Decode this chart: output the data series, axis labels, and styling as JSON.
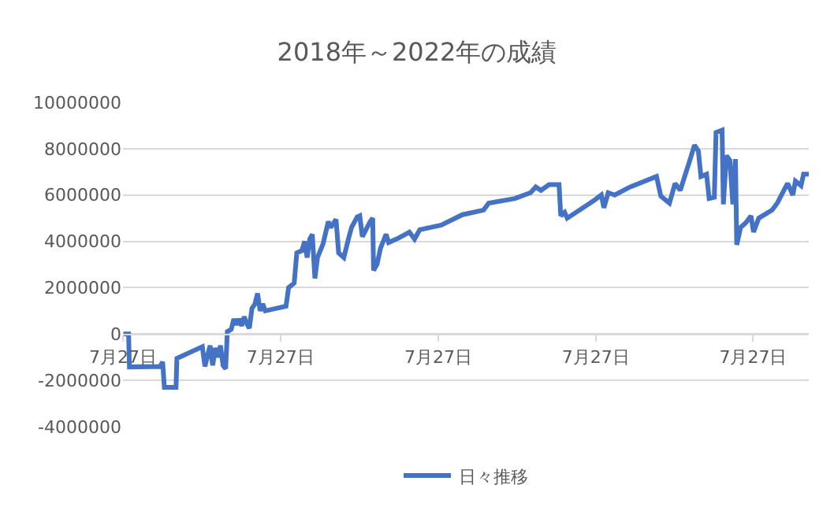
{
  "chart_data": {
    "type": "line",
    "title": "2018年～2022年の成績",
    "x": [
      "2018-07-28",
      "2018-08-09",
      "2018-08-11",
      "2018-10-21",
      "2018-10-27",
      "2018-10-31",
      "2018-11-27",
      "2018-11-29",
      "2019-01-27",
      "2019-02-02",
      "2019-02-14",
      "2019-02-20",
      "2019-02-26",
      "2019-03-04",
      "2019-03-10",
      "2019-03-16",
      "2019-03-22",
      "2019-03-26",
      "2019-04-04",
      "2019-04-10",
      "2019-04-16",
      "2019-04-22",
      "2019-04-28",
      "2019-05-04",
      "2019-05-10",
      "2019-05-16",
      "2019-05-22",
      "2019-05-29",
      "2019-06-04",
      "2019-06-10",
      "2019-06-16",
      "2019-06-22",
      "2019-08-09",
      "2019-08-15",
      "2019-08-28",
      "2019-09-03",
      "2019-09-15",
      "2019-09-21",
      "2019-09-27",
      "2019-10-03",
      "2019-10-09",
      "2019-10-15",
      "2019-10-21",
      "2019-11-03",
      "2019-11-15",
      "2019-11-21",
      "2019-12-03",
      "2019-12-09",
      "2019-12-21",
      "2020-01-02",
      "2020-01-08",
      "2020-01-21",
      "2020-01-27",
      "2020-02-02",
      "2020-02-20",
      "2020-02-26",
      "2020-02-28",
      "2020-03-07",
      "2020-03-15",
      "2020-03-28",
      "2020-04-03",
      "2020-04-27",
      "2020-05-21",
      "2020-06-02",
      "2020-06-14",
      "2020-08-03",
      "2020-09-21",
      "2020-11-09",
      "2020-11-21",
      "2021-01-21",
      "2021-02-26",
      "2021-03-10",
      "2021-03-22",
      "2021-04-10",
      "2021-05-03",
      "2021-05-07",
      "2021-05-16",
      "2021-05-22",
      "2021-07-22",
      "2021-08-09",
      "2021-08-15",
      "2021-08-25",
      "2021-09-09",
      "2021-10-15",
      "2021-12-15",
      "2021-12-25",
      "2022-01-14",
      "2022-01-27",
      "2022-02-08",
      "2022-02-20",
      "2022-03-04",
      "2022-03-13",
      "2022-03-22",
      "2022-03-28",
      "2022-04-10",
      "2022-04-16",
      "2022-04-28",
      "2022-05-02",
      "2022-05-16",
      "2022-05-19",
      "2022-05-26",
      "2022-06-03",
      "2022-06-10",
      "2022-06-16",
      "2022-06-19",
      "2022-06-28",
      "2022-07-10",
      "2022-07-22",
      "2022-07-28",
      "2022-08-09",
      "2022-09-09",
      "2022-09-21",
      "2022-10-09",
      "2022-10-15",
      "2022-10-27",
      "2022-11-02",
      "2022-11-15",
      "2022-11-21",
      "2022-12-03"
    ],
    "series": [
      {
        "name": "日々推移",
        "color": "#4472c4",
        "values": [
          0,
          0,
          -1420000,
          -1400000,
          -1200000,
          -2300000,
          -2300000,
          -1050000,
          -550000,
          -1400000,
          -500000,
          -1350000,
          -600000,
          -1000000,
          -500000,
          -1350000,
          -1500000,
          100000,
          200000,
          650000,
          400000,
          650000,
          350000,
          750000,
          450000,
          250000,
          1100000,
          1300000,
          1750000,
          1000000,
          1300000,
          1000000,
          1200000,
          2000000,
          2200000,
          3500000,
          3600000,
          4000000,
          3300000,
          4100000,
          4300000,
          2400000,
          3300000,
          3900000,
          4850000,
          4600000,
          4950000,
          3500000,
          3300000,
          4200000,
          4600000,
          5050000,
          5100000,
          4200000,
          4850000,
          5000000,
          2750000,
          3000000,
          3700000,
          4300000,
          3950000,
          4150000,
          4400000,
          4100000,
          4500000,
          4700000,
          5150000,
          5350000,
          5650000,
          5850000,
          6100000,
          6350000,
          6200000,
          6450000,
          6450000,
          5100000,
          5250000,
          5000000,
          5750000,
          6000000,
          5450000,
          6100000,
          6000000,
          6350000,
          6800000,
          5950000,
          5650000,
          6500000,
          6200000,
          6900000,
          7600000,
          8150000,
          7900000,
          6800000,
          6900000,
          5850000,
          5900000,
          8700000,
          8800000,
          5600000,
          7700000,
          7500000,
          5600000,
          7550000,
          3850000,
          4600000,
          4800000,
          5100000,
          4400000,
          5000000,
          5350000,
          5650000,
          6300000,
          6500000,
          6000000,
          6600000,
          6400000,
          6900000,
          6900000
        ]
      }
    ],
    "xlim": [
      "2018-07-27",
      "2022-12-03"
    ],
    "xticks": [
      {
        "value": "2018-07-27",
        "label": "7月27日"
      },
      {
        "value": "2019-07-27",
        "label": "7月27日"
      },
      {
        "value": "2020-07-27",
        "label": "7月27日"
      },
      {
        "value": "2021-07-27",
        "label": "7月27日"
      },
      {
        "value": "2022-07-27",
        "label": "7月27日"
      }
    ],
    "ylim": [
      -4000000,
      10000000
    ],
    "yticks": [
      -4000000,
      -2000000,
      0,
      2000000,
      4000000,
      6000000,
      8000000,
      10000000
    ],
    "grid": "y",
    "legend": "bottom",
    "marker": "none",
    "line_style": "solid"
  }
}
